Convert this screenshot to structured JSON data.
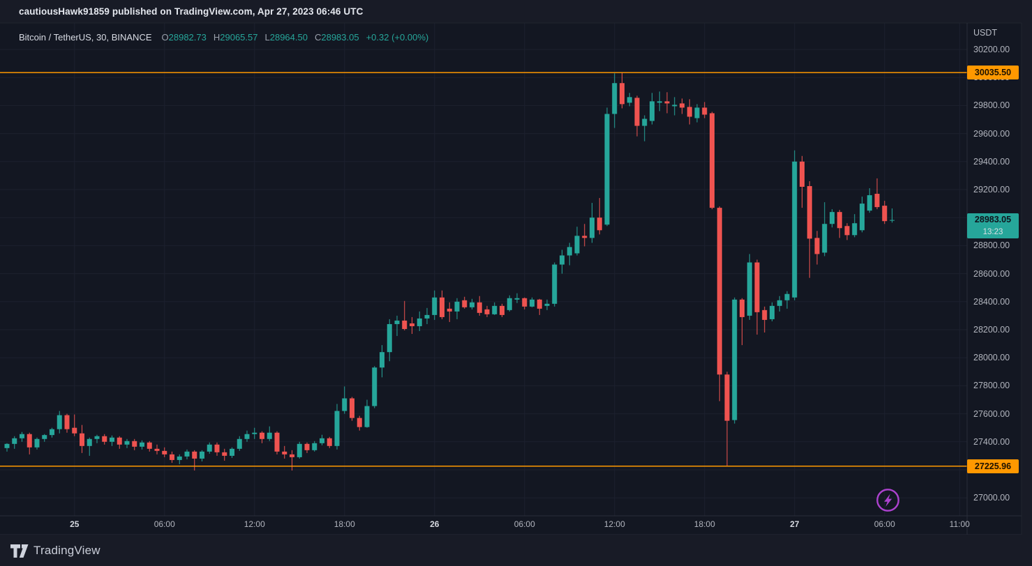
{
  "attribution_bar": {
    "text": "cautiousHawk91859 published on TradingView.com, Apr 27, 2023 06:46 UTC"
  },
  "legend": {
    "title": "Bitcoin / TetherUS, 30, BINANCE",
    "items": [
      {
        "label": "O",
        "value": "28982.73"
      },
      {
        "label": "H",
        "value": "29065.57"
      },
      {
        "label": "L",
        "value": "28964.50"
      },
      {
        "label": "C",
        "value": "28983.05"
      }
    ],
    "change": "+0.32 (+0.00%)"
  },
  "price_axis": {
    "currency": "USDT",
    "labels": [
      {
        "text": "30200.00",
        "price": 30200
      },
      {
        "text": "30000.00",
        "price": 30000
      },
      {
        "text": "29800.00",
        "price": 29800
      },
      {
        "text": "29600.00",
        "price": 29600
      },
      {
        "text": "29400.00",
        "price": 29400
      },
      {
        "text": "29200.00",
        "price": 29200
      },
      {
        "text": "28800.00",
        "price": 28800
      },
      {
        "text": "28600.00",
        "price": 28600
      },
      {
        "text": "28400.00",
        "price": 28400
      },
      {
        "text": "28200.00",
        "price": 28200
      },
      {
        "text": "28000.00",
        "price": 28000
      },
      {
        "text": "27800.00",
        "price": 27800
      },
      {
        "text": "27600.00",
        "price": 27600
      },
      {
        "text": "27400.00",
        "price": 27400
      },
      {
        "text": "27000.00",
        "price": 27000
      }
    ],
    "upper_level_badge": {
      "text": "30035.50",
      "price": 30035.5
    },
    "lower_level_badge": {
      "text": "27225.96",
      "price": 27225.96
    },
    "current_badge": {
      "price_text": "28983.05",
      "price": 28983.05,
      "countdown": "13:23"
    }
  },
  "time_axis": {
    "ticks": [
      {
        "label": "25",
        "i": 9,
        "bold": true
      },
      {
        "label": "06:00",
        "i": 21,
        "bold": false
      },
      {
        "label": "12:00",
        "i": 33,
        "bold": false
      },
      {
        "label": "18:00",
        "i": 45,
        "bold": false
      },
      {
        "label": "26",
        "i": 57,
        "bold": true
      },
      {
        "label": "06:00",
        "i": 69,
        "bold": false
      },
      {
        "label": "12:00",
        "i": 81,
        "bold": false
      },
      {
        "label": "18:00",
        "i": 93,
        "bold": false
      },
      {
        "label": "27",
        "i": 105,
        "bold": true
      },
      {
        "label": "06:00",
        "i": 117,
        "bold": false
      },
      {
        "label": "11:00",
        "i": 127,
        "bold": false
      }
    ]
  },
  "footer": {
    "brand": "TradingView"
  },
  "colors": {
    "up": "#26a69a",
    "down": "#ef5350",
    "level_line": "#ff9800",
    "grid": "#1d212e",
    "border": "#2a2e39",
    "chart_bg": "#131722",
    "outer_bg": "#181b26",
    "flash_purple": "#ad42cf"
  },
  "chart_data": {
    "type": "candlestick",
    "symbol": "Bitcoin / TetherUS",
    "interval": "30",
    "exchange": "BINANCE",
    "quote_currency": "USDT",
    "y_range": [
      27000,
      30200
    ],
    "grid_step": 200,
    "grid": true,
    "levels": [
      30035.5,
      27225.96
    ],
    "current_price": 28983.05,
    "candles_ohlc": [
      [
        27355,
        27390,
        27330,
        27385
      ],
      [
        27385,
        27440,
        27350,
        27425
      ],
      [
        27425,
        27470,
        27400,
        27455
      ],
      [
        27455,
        27465,
        27310,
        27360
      ],
      [
        27360,
        27430,
        27345,
        27420
      ],
      [
        27420,
        27455,
        27400,
        27448
      ],
      [
        27448,
        27500,
        27430,
        27490
      ],
      [
        27490,
        27620,
        27460,
        27590
      ],
      [
        27590,
        27600,
        27465,
        27490
      ],
      [
        27500,
        27595,
        27440,
        27460
      ],
      [
        27460,
        27520,
        27320,
        27370
      ],
      [
        27370,
        27430,
        27300,
        27420
      ],
      [
        27420,
        27450,
        27390,
        27440
      ],
      [
        27440,
        27455,
        27380,
        27400
      ],
      [
        27400,
        27445,
        27370,
        27430
      ],
      [
        27430,
        27440,
        27350,
        27380
      ],
      [
        27380,
        27420,
        27355,
        27405
      ],
      [
        27405,
        27420,
        27340,
        27365
      ],
      [
        27365,
        27410,
        27345,
        27395
      ],
      [
        27395,
        27405,
        27330,
        27350
      ],
      [
        27350,
        27380,
        27310,
        27335
      ],
      [
        27335,
        27360,
        27290,
        27310
      ],
      [
        27310,
        27330,
        27250,
        27270
      ],
      [
        27270,
        27310,
        27240,
        27295
      ],
      [
        27295,
        27345,
        27275,
        27330
      ],
      [
        27330,
        27340,
        27195,
        27280
      ],
      [
        27280,
        27340,
        27260,
        27330
      ],
      [
        27330,
        27395,
        27315,
        27380
      ],
      [
        27380,
        27395,
        27300,
        27325
      ],
      [
        27325,
        27350,
        27265,
        27300
      ],
      [
        27300,
        27360,
        27285,
        27350
      ],
      [
        27350,
        27440,
        27335,
        27420
      ],
      [
        27420,
        27480,
        27400,
        27455
      ],
      [
        27455,
        27500,
        27420,
        27465
      ],
      [
        27465,
        27475,
        27390,
        27420
      ],
      [
        27420,
        27510,
        27405,
        27465
      ],
      [
        27465,
        27475,
        27310,
        27330
      ],
      [
        27330,
        27370,
        27280,
        27310
      ],
      [
        27310,
        27340,
        27195,
        27290
      ],
      [
        27290,
        27400,
        27280,
        27385
      ],
      [
        27385,
        27395,
        27320,
        27340
      ],
      [
        27340,
        27405,
        27330,
        27390
      ],
      [
        27390,
        27450,
        27375,
        27425
      ],
      [
        27425,
        27435,
        27355,
        27370
      ],
      [
        27370,
        27670,
        27345,
        27620
      ],
      [
        27620,
        27795,
        27600,
        27710
      ],
      [
        27710,
        27720,
        27550,
        27570
      ],
      [
        27570,
        27585,
        27480,
        27505
      ],
      [
        27505,
        27700,
        27500,
        27655
      ],
      [
        27655,
        27940,
        27640,
        27930
      ],
      [
        27930,
        28090,
        27860,
        28040
      ],
      [
        28040,
        28275,
        27975,
        28240
      ],
      [
        28240,
        28300,
        28155,
        28265
      ],
      [
        28265,
        28405,
        28195,
        28205
      ],
      [
        28245,
        28290,
        28170,
        28225
      ],
      [
        28225,
        28330,
        28190,
        28280
      ],
      [
        28280,
        28355,
        28240,
        28305
      ],
      [
        28305,
        28480,
        28270,
        28430
      ],
      [
        28430,
        28480,
        28275,
        28290
      ],
      [
        28350,
        28395,
        28255,
        28330
      ],
      [
        28330,
        28425,
        28275,
        28400
      ],
      [
        28410,
        28435,
        28350,
        28360
      ],
      [
        28360,
        28420,
        28345,
        28395
      ],
      [
        28395,
        28440,
        28300,
        28320
      ],
      [
        28345,
        28370,
        28290,
        28310
      ],
      [
        28310,
        28395,
        28305,
        28370
      ],
      [
        28370,
        28385,
        28290,
        28305
      ],
      [
        28340,
        28445,
        28330,
        28425
      ],
      [
        28415,
        28460,
        28390,
        28425
      ],
      [
        28425,
        28430,
        28345,
        28365
      ],
      [
        28365,
        28430,
        28360,
        28415
      ],
      [
        28415,
        28420,
        28305,
        28350
      ],
      [
        28370,
        28415,
        28340,
        28385
      ],
      [
        28385,
        28680,
        28365,
        28665
      ],
      [
        28665,
        28770,
        28600,
        28730
      ],
      [
        28730,
        28820,
        28660,
        28790
      ],
      [
        28745,
        28935,
        28730,
        28870
      ],
      [
        28870,
        28955,
        28795,
        28855
      ],
      [
        28855,
        29105,
        28820,
        29000
      ],
      [
        29000,
        29140,
        28880,
        28910
      ],
      [
        28950,
        29785,
        28940,
        29740
      ],
      [
        29740,
        30030,
        29640,
        29960
      ],
      [
        29960,
        30035,
        29780,
        29810
      ],
      [
        29820,
        29890,
        29795,
        29860
      ],
      [
        29855,
        29870,
        29580,
        29655
      ],
      [
        29655,
        29730,
        29545,
        29705
      ],
      [
        29690,
        29890,
        29665,
        29830
      ],
      [
        29820,
        29900,
        29760,
        29830
      ],
      [
        29830,
        29895,
        29745,
        29815
      ],
      [
        29795,
        29860,
        29730,
        29805
      ],
      [
        29815,
        29850,
        29740,
        29785
      ],
      [
        29790,
        29845,
        29665,
        29720
      ],
      [
        29710,
        29810,
        29680,
        29785
      ],
      [
        29785,
        29825,
        29710,
        29735
      ],
      [
        29745,
        29755,
        29060,
        29070
      ],
      [
        29070,
        29080,
        27690,
        27880
      ],
      [
        27880,
        27900,
        27226,
        27550
      ],
      [
        27555,
        28430,
        27530,
        28415
      ],
      [
        28415,
        28425,
        28090,
        28290
      ],
      [
        28300,
        28740,
        28270,
        28680
      ],
      [
        28680,
        28700,
        28165,
        28325
      ],
      [
        28340,
        28365,
        28180,
        28270
      ],
      [
        28275,
        28395,
        28260,
        28370
      ],
      [
        28370,
        28440,
        28330,
        28410
      ],
      [
        28410,
        28475,
        28350,
        28455
      ],
      [
        28430,
        29480,
        28410,
        29400
      ],
      [
        29400,
        29440,
        29070,
        29220
      ],
      [
        29225,
        29260,
        28570,
        28850
      ],
      [
        28855,
        28905,
        28665,
        28740
      ],
      [
        28750,
        29110,
        28725,
        28955
      ],
      [
        28955,
        29060,
        28930,
        29040
      ],
      [
        29040,
        29055,
        28855,
        28925
      ],
      [
        28940,
        28960,
        28840,
        28875
      ],
      [
        28875,
        29025,
        28860,
        28960
      ],
      [
        28910,
        29150,
        28895,
        29100
      ],
      [
        29050,
        29210,
        29035,
        29160
      ],
      [
        29170,
        29280,
        29060,
        29075
      ],
      [
        29085,
        29120,
        28955,
        28975
      ],
      [
        28982.73,
        29065.57,
        28964.5,
        28983.05
      ]
    ]
  }
}
